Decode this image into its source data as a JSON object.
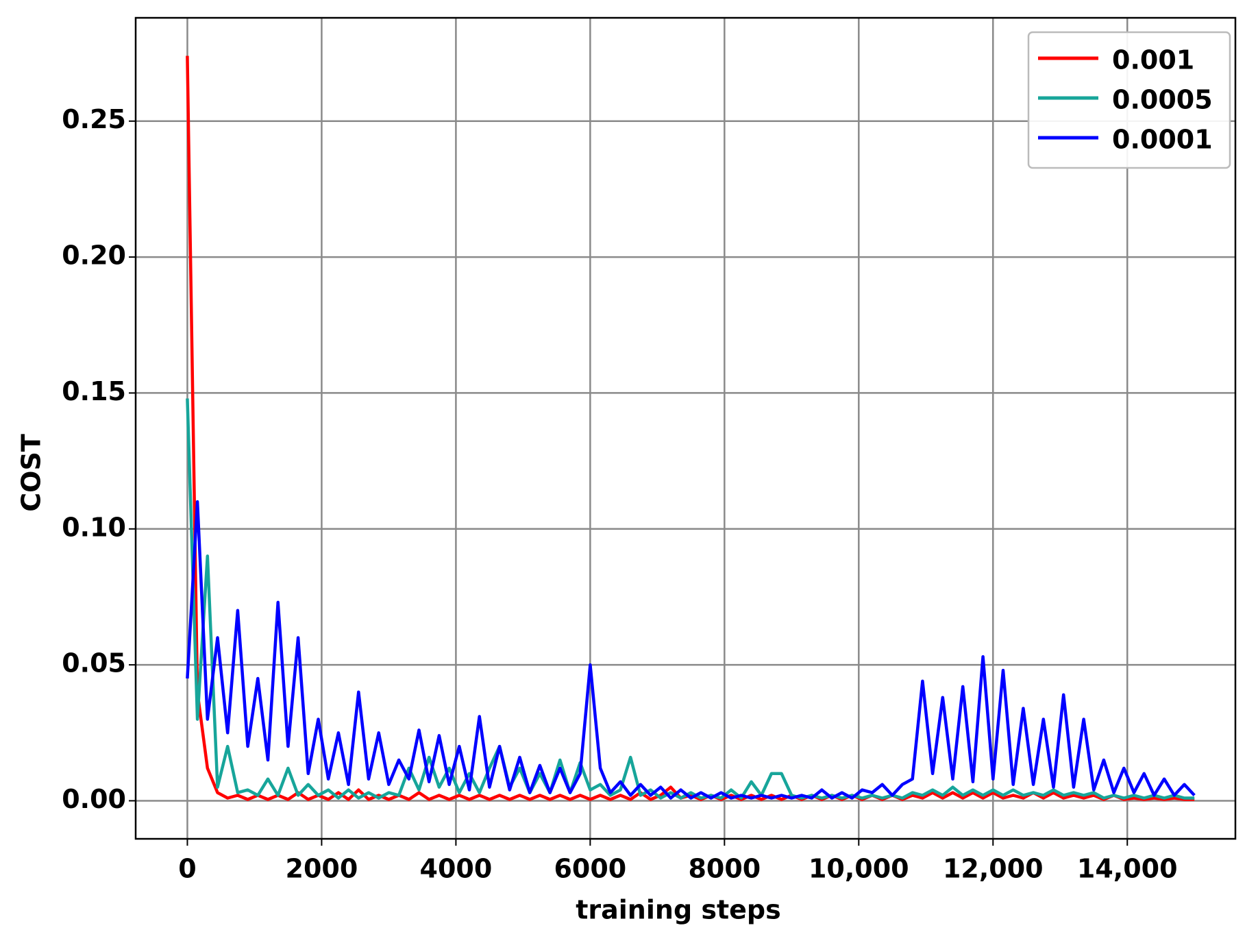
{
  "chart_data": {
    "type": "line",
    "xlabel": "training steps",
    "ylabel": "COST",
    "x": [
      0,
      150,
      300,
      450,
      600,
      750,
      900,
      1050,
      1200,
      1350,
      1500,
      1650,
      1800,
      1950,
      2100,
      2250,
      2400,
      2550,
      2700,
      2850,
      3000,
      3150,
      3300,
      3450,
      3600,
      3750,
      3900,
      4050,
      4200,
      4350,
      4500,
      4650,
      4800,
      4950,
      5100,
      5250,
      5400,
      5550,
      5700,
      5850,
      6000,
      6150,
      6300,
      6450,
      6600,
      6750,
      6900,
      7050,
      7200,
      7350,
      7500,
      7650,
      7800,
      7950,
      8100,
      8250,
      8400,
      8550,
      8700,
      8850,
      9000,
      9150,
      9300,
      9450,
      9600,
      9750,
      9900,
      10050,
      10200,
      10350,
      10500,
      10650,
      10800,
      10950,
      11100,
      11250,
      11400,
      11550,
      11700,
      11850,
      12000,
      12150,
      12300,
      12450,
      12600,
      12750,
      12900,
      13050,
      13200,
      13350,
      13500,
      13650,
      13800,
      13950,
      14100,
      14250,
      14400,
      14550,
      14700,
      14850,
      15000
    ],
    "series": [
      {
        "name": "0.001",
        "color": "#ff0000",
        "values": [
          0.274,
          0.04,
          0.012,
          0.003,
          0.001,
          0.002,
          0.0005,
          0.002,
          0.0005,
          0.002,
          0.0005,
          0.003,
          0.0005,
          0.002,
          0.0005,
          0.003,
          0.0005,
          0.004,
          0.0005,
          0.002,
          0.0005,
          0.002,
          0.0005,
          0.003,
          0.0005,
          0.002,
          0.0005,
          0.002,
          0.0005,
          0.002,
          0.0005,
          0.002,
          0.0005,
          0.002,
          0.0005,
          0.002,
          0.0005,
          0.002,
          0.0005,
          0.002,
          0.0005,
          0.002,
          0.0005,
          0.002,
          0.0005,
          0.003,
          0.0005,
          0.002,
          0.005,
          0.001,
          0.002,
          0.0005,
          0.002,
          0.0005,
          0.002,
          0.0005,
          0.002,
          0.0005,
          0.002,
          0.0005,
          0.002,
          0.0005,
          0.002,
          0.0005,
          0.002,
          0.0005,
          0.002,
          0.0005,
          0.002,
          0.0005,
          0.002,
          0.0005,
          0.002,
          0.001,
          0.003,
          0.001,
          0.003,
          0.001,
          0.003,
          0.001,
          0.003,
          0.001,
          0.002,
          0.001,
          0.003,
          0.001,
          0.003,
          0.001,
          0.002,
          0.001,
          0.002,
          0.0005,
          0.002,
          0.0005,
          0.001,
          0.0005,
          0.001,
          0.0005,
          0.001,
          0.0005,
          0.0005
        ]
      },
      {
        "name": "0.0005",
        "color": "#17a59a",
        "values": [
          0.148,
          0.03,
          0.09,
          0.005,
          0.02,
          0.003,
          0.004,
          0.002,
          0.008,
          0.002,
          0.012,
          0.002,
          0.006,
          0.002,
          0.004,
          0.001,
          0.004,
          0.001,
          0.003,
          0.001,
          0.003,
          0.002,
          0.012,
          0.004,
          0.016,
          0.005,
          0.012,
          0.003,
          0.01,
          0.003,
          0.012,
          0.02,
          0.005,
          0.012,
          0.003,
          0.01,
          0.003,
          0.015,
          0.003,
          0.014,
          0.004,
          0.006,
          0.002,
          0.004,
          0.016,
          0.002,
          0.004,
          0.001,
          0.003,
          0.001,
          0.003,
          0.001,
          0.002,
          0.001,
          0.004,
          0.001,
          0.007,
          0.002,
          0.01,
          0.01,
          0.002,
          0.001,
          0.002,
          0.001,
          0.002,
          0.001,
          0.002,
          0.001,
          0.002,
          0.001,
          0.002,
          0.001,
          0.003,
          0.002,
          0.004,
          0.002,
          0.005,
          0.002,
          0.004,
          0.002,
          0.004,
          0.002,
          0.004,
          0.002,
          0.003,
          0.002,
          0.004,
          0.002,
          0.003,
          0.002,
          0.003,
          0.001,
          0.002,
          0.001,
          0.002,
          0.001,
          0.002,
          0.001,
          0.002,
          0.001,
          0.001
        ]
      },
      {
        "name": "0.0001",
        "color": "#0000ff",
        "values": [
          0.045,
          0.11,
          0.03,
          0.06,
          0.025,
          0.07,
          0.02,
          0.045,
          0.015,
          0.073,
          0.02,
          0.06,
          0.01,
          0.03,
          0.008,
          0.025,
          0.006,
          0.04,
          0.008,
          0.025,
          0.006,
          0.015,
          0.008,
          0.026,
          0.007,
          0.024,
          0.006,
          0.02,
          0.004,
          0.031,
          0.005,
          0.02,
          0.004,
          0.016,
          0.003,
          0.013,
          0.003,
          0.012,
          0.003,
          0.01,
          0.05,
          0.012,
          0.003,
          0.007,
          0.002,
          0.006,
          0.002,
          0.005,
          0.001,
          0.004,
          0.001,
          0.003,
          0.001,
          0.003,
          0.001,
          0.002,
          0.001,
          0.002,
          0.001,
          0.002,
          0.001,
          0.002,
          0.001,
          0.004,
          0.001,
          0.003,
          0.001,
          0.004,
          0.003,
          0.006,
          0.002,
          0.006,
          0.008,
          0.044,
          0.01,
          0.038,
          0.008,
          0.042,
          0.007,
          0.053,
          0.008,
          0.048,
          0.006,
          0.034,
          0.006,
          0.03,
          0.005,
          0.039,
          0.005,
          0.03,
          0.004,
          0.015,
          0.003,
          0.012,
          0.003,
          0.01,
          0.002,
          0.008,
          0.002,
          0.006,
          0.002
        ]
      }
    ],
    "xlim": [
      -770,
      15610
    ],
    "ylim": [
      -0.014,
      0.288
    ],
    "xticks": [
      0,
      2000,
      4000,
      6000,
      8000,
      {
        "value": 10000,
        "label": "10,000"
      },
      {
        "value": 12000,
        "label": "12,000"
      },
      {
        "value": 14000,
        "label": "14,000"
      }
    ],
    "yticks": [
      {
        "value": 0,
        "label": "0.00"
      },
      {
        "value": 0.05,
        "label": "0.05"
      },
      {
        "value": 0.1,
        "label": "0.10"
      },
      0.15,
      {
        "value": 0.2,
        "label": "0.20"
      },
      0.25
    ],
    "grid": true,
    "legend": "upper right"
  }
}
